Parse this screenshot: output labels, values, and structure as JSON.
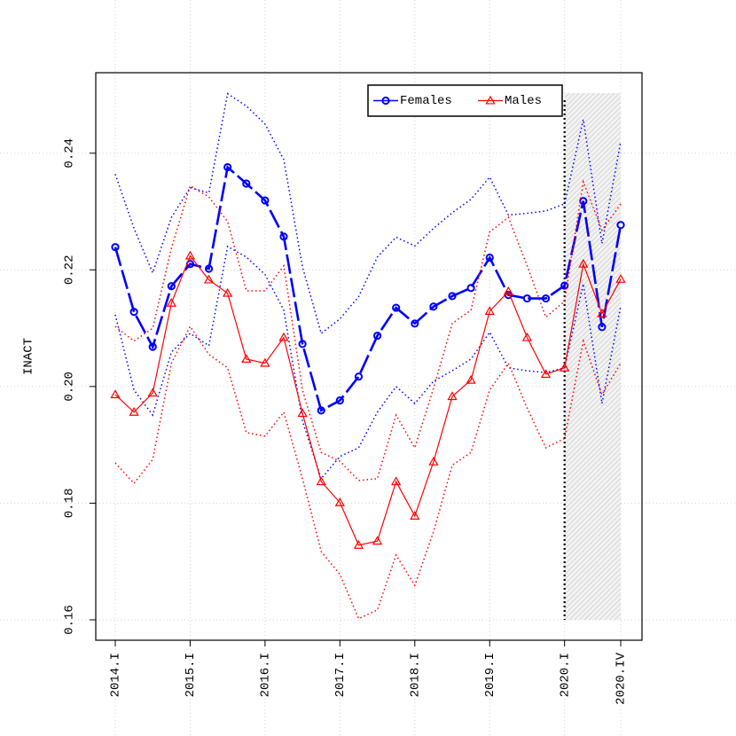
{
  "chart_data": {
    "type": "line",
    "ylabel": "INACT",
    "categories": [
      "2014.I",
      null,
      null,
      null,
      "2015.I",
      null,
      null,
      null,
      "2016.I",
      null,
      null,
      null,
      "2017.I",
      null,
      null,
      null,
      "2018.I",
      null,
      null,
      null,
      "2019.I",
      null,
      null,
      null,
      "2020.I",
      null,
      null,
      "2020.IV"
    ],
    "series": [
      {
        "name": "Females",
        "color": "#0000ff",
        "values": [
          0.2239,
          0.2128,
          0.2068,
          0.2172,
          0.221,
          0.2202,
          0.2376,
          0.2348,
          0.2319,
          0.2257,
          0.2073,
          0.1959,
          0.1976,
          0.2017,
          0.2087,
          0.2135,
          0.2108,
          0.2137,
          0.2155,
          0.2169,
          0.2221,
          0.2157,
          0.2151,
          0.2151,
          0.2173,
          0.2318,
          0.2102,
          0.2277
        ],
        "upper": [
          0.2364,
          0.2271,
          0.2195,
          0.229,
          0.2341,
          0.2332,
          0.2502,
          0.2481,
          0.245,
          0.2389,
          0.2205,
          0.2091,
          0.2116,
          0.2154,
          0.2222,
          0.2256,
          0.2241,
          0.2271,
          0.2298,
          0.2321,
          0.2359,
          0.2294,
          0.2297,
          0.2301,
          0.2313,
          0.2458,
          0.2245,
          0.242
        ],
        "lower": [
          0.2123,
          0.1994,
          0.1951,
          0.2059,
          0.2091,
          0.207,
          0.224,
          0.2222,
          0.2192,
          0.2131,
          0.1941,
          0.1842,
          0.188,
          0.1895,
          0.1956,
          0.2,
          0.1971,
          0.2009,
          0.2027,
          0.2047,
          0.2093,
          0.2032,
          0.2027,
          0.2024,
          0.2032,
          0.2176,
          0.1971,
          0.2138
        ]
      },
      {
        "name": "Males",
        "color": "#ff0000",
        "values": [
          0.1986,
          0.1956,
          0.1989,
          0.2143,
          0.2224,
          0.2183,
          0.216,
          0.2047,
          0.204,
          0.2084,
          0.1954,
          0.1837,
          0.1801,
          0.1728,
          0.1735,
          0.1837,
          0.1778,
          0.1871,
          0.1983,
          0.2011,
          0.2129,
          0.2163,
          0.2084,
          0.2021,
          0.2032,
          0.221,
          0.2125,
          0.2184
        ],
        "upper": [
          0.2103,
          0.2078,
          0.21,
          0.2237,
          0.2344,
          0.2325,
          0.2283,
          0.2164,
          0.2164,
          0.2207,
          0.1994,
          0.1887,
          0.1872,
          0.1839,
          0.1842,
          0.1951,
          0.1895,
          0.1997,
          0.2108,
          0.2131,
          0.2265,
          0.229,
          0.2207,
          0.2119,
          0.2146,
          0.2351,
          0.2268,
          0.2313
        ],
        "lower": [
          0.1869,
          0.1834,
          0.1875,
          0.204,
          0.2103,
          0.2055,
          0.2032,
          0.1921,
          0.1915,
          0.1956,
          0.1842,
          0.1717,
          0.1678,
          0.1602,
          0.1617,
          0.1711,
          0.1659,
          0.1751,
          0.1865,
          0.1887,
          0.1994,
          0.204,
          0.1963,
          0.1895,
          0.1911,
          0.2078,
          0.1986,
          0.204
        ]
      }
    ],
    "ylim": [
      0.1565,
      0.2538
    ],
    "yticks": [
      0.16,
      0.18,
      {
        "value": 0.2,
        "label": "0.20"
      },
      0.22,
      0.24
    ],
    "grid": true,
    "legend": "top-right",
    "shade": {
      "x": [
        24,
        27
      ],
      "y": [
        0.16,
        0.2503
      ]
    }
  }
}
